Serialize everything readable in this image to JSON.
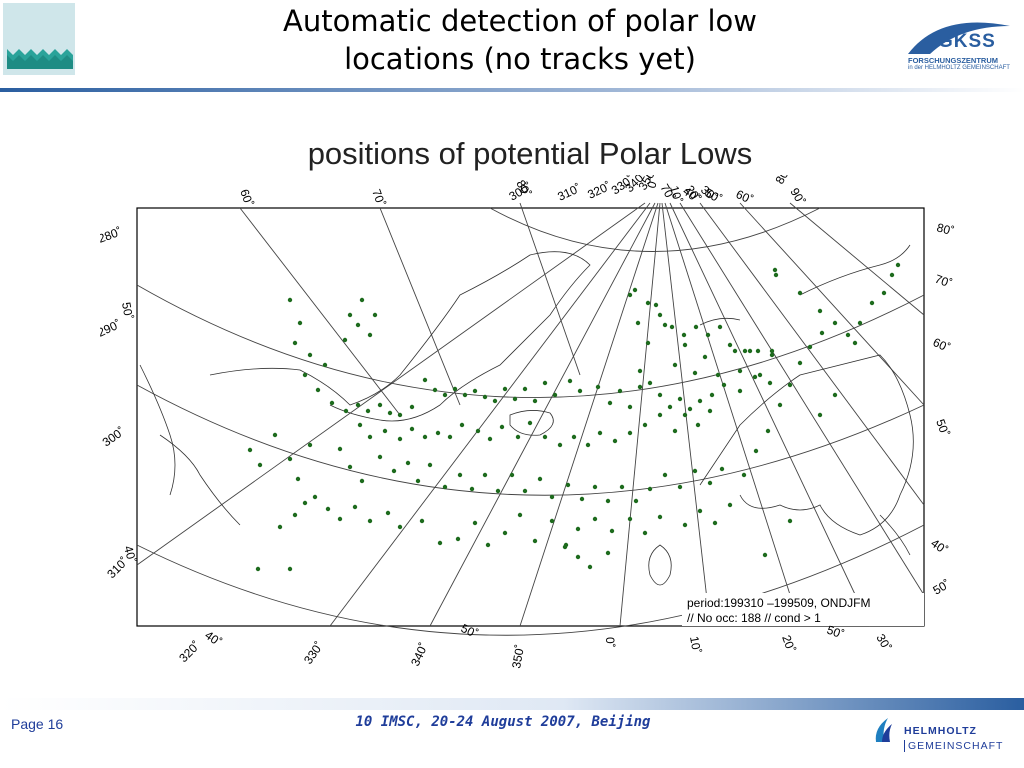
{
  "header": {
    "title_line1": "Automatic detection of polar low",
    "title_line2": "locations (no tracks yet)",
    "logo_left": "wave-logo",
    "logo_right_name": "GKSS",
    "logo_right_sub1": "FORSCHUNGSZENTRUM",
    "logo_right_sub2": "in der HELMHOLTZ GEMEINSCHAFT",
    "accent_color": "#2a5ea0"
  },
  "figure": {
    "title": "positions of potential Polar Lows",
    "legend_line1": "period:199310 –199509, ONDJFM",
    "legend_line2": "// No occ: 188 // cond > 1",
    "dot_color": "#1d6b1d",
    "lon_labels": [
      "60˚",
      "70˚",
      "80˚",
      "300˚",
      "310˚",
      "320˚",
      "330˚",
      "340˚",
      "350˚",
      "0˚",
      "10˚",
      "20˚",
      "30˚",
      "40˚",
      "50˚",
      "60˚",
      "70˚",
      "80˚",
      "90˚"
    ],
    "left_labels": [
      "280˚",
      "290˚",
      "300˚",
      "310˚",
      "50˚",
      "40˚"
    ],
    "right_labels": [
      "80˚",
      "70˚",
      "60˚",
      "50˚",
      "40˚",
      "50˚"
    ],
    "bottom_labels": [
      "320˚",
      "40˚",
      "330˚",
      "340˚",
      "50˚",
      "350˚",
      "0˚",
      "10˚",
      "20˚",
      "50˚",
      "30˚"
    ]
  },
  "footer": {
    "page": "Page 16",
    "conference": "10 IMSC, 20-24 August 2007, Beijing",
    "logo_line1": "HELMHOLTZ",
    "logo_line2": "GEMEINSCHAFT"
  }
}
